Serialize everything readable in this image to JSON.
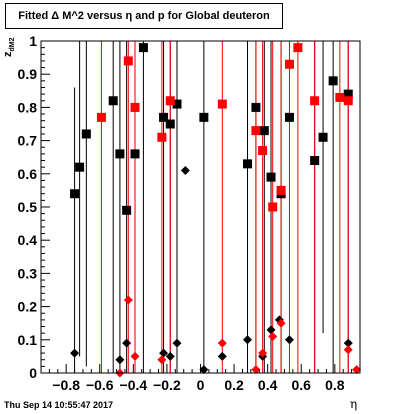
{
  "chart_data": {
    "type": "scatter",
    "title": "Fitted Δ M^2 versus η and p for Global deuteron",
    "xlabel": "η",
    "ylabel_main": "z",
    "ylabel_sub": "dM2",
    "timestamp": "Thu Sep 14 10:55:47 2017",
    "xlim": [
      -0.95,
      0.95
    ],
    "ylim": [
      0,
      1
    ],
    "x_ticks": [
      "−0.8",
      "−0.6",
      "−0.4",
      "−0.2",
      "0",
      "0.2",
      "0.4",
      "0.6",
      "0.8"
    ],
    "y_ticks": [
      "0",
      "0.1",
      "0.2",
      "0.3",
      "0.4",
      "0.5",
      "0.6",
      "0.7",
      "0.8",
      "0.9",
      "1"
    ],
    "colors": {
      "black_series": "#000000",
      "red_series": "#ff0000",
      "frame": "#000000"
    },
    "series": [
      {
        "marker": "square",
        "color": "#000000",
        "points": [
          {
            "x": -0.75,
            "y": 0.54,
            "ylo": 0.0,
            "yhi": 0.86
          },
          {
            "x": -0.72,
            "y": 0.62,
            "ylo": 0.05,
            "yhi": 1.0
          },
          {
            "x": -0.68,
            "y": 0.72,
            "ylo": 0.02,
            "yhi": 1.0
          },
          {
            "x": -0.52,
            "y": 0.82,
            "ylo": 0.0,
            "yhi": 1.0
          },
          {
            "x": -0.48,
            "y": 0.66,
            "ylo": 0.0,
            "yhi": 1.0
          },
          {
            "x": -0.44,
            "y": 0.49,
            "ylo": 0.0,
            "yhi": 1.0
          },
          {
            "x": -0.39,
            "y": 0.66,
            "ylo": 0.0,
            "yhi": 1.0
          },
          {
            "x": -0.34,
            "y": 0.98,
            "ylo": 0.0,
            "yhi": 1.0
          },
          {
            "x": -0.22,
            "y": 0.77,
            "ylo": 0.0,
            "yhi": 1.0
          },
          {
            "x": -0.18,
            "y": 0.75,
            "ylo": 0.0,
            "yhi": 1.0
          },
          {
            "x": -0.14,
            "y": 0.81,
            "ylo": 0.0,
            "yhi": 1.0
          },
          {
            "x": 0.02,
            "y": 0.77,
            "ylo": 0.0,
            "yhi": 1.0
          },
          {
            "x": 0.28,
            "y": 0.63,
            "ylo": 0.0,
            "yhi": 1.0
          },
          {
            "x": 0.33,
            "y": 0.8,
            "ylo": 0.0,
            "yhi": 1.0
          },
          {
            "x": 0.38,
            "y": 0.73,
            "ylo": 0.0,
            "yhi": 1.0
          },
          {
            "x": 0.42,
            "y": 0.59,
            "ylo": 0.0,
            "yhi": 1.0
          },
          {
            "x": 0.48,
            "y": 0.54,
            "ylo": 0.0,
            "yhi": 1.0
          },
          {
            "x": 0.53,
            "y": 0.77,
            "ylo": 0.0,
            "yhi": 1.0
          },
          {
            "x": 0.68,
            "y": 0.64,
            "ylo": 0.0,
            "yhi": 1.0
          },
          {
            "x": 0.73,
            "y": 0.71,
            "ylo": 0.12,
            "yhi": 1.0
          },
          {
            "x": 0.79,
            "y": 0.88,
            "ylo": 0.0,
            "yhi": 1.0
          },
          {
            "x": 0.88,
            "y": 0.84,
            "ylo": 0.0,
            "yhi": 1.0
          }
        ]
      },
      {
        "marker": "square",
        "color": "#ff0000",
        "points": [
          {
            "x": -0.59,
            "y": 0.77,
            "ylo": 0.0,
            "yhi": 1.0
          },
          {
            "x": -0.43,
            "y": 0.94,
            "ylo": 0.0,
            "yhi": 1.0
          },
          {
            "x": -0.39,
            "y": 0.8,
            "ylo": 0.0,
            "yhi": 1.0
          },
          {
            "x": -0.23,
            "y": 0.71,
            "ylo": 0.0,
            "yhi": 1.0
          },
          {
            "x": -0.18,
            "y": 0.82,
            "ylo": 0.0,
            "yhi": 1.0
          },
          {
            "x": 0.13,
            "y": 0.81,
            "ylo": 0.0,
            "yhi": 1.0
          },
          {
            "x": 0.33,
            "y": 0.73,
            "ylo": 0.0,
            "yhi": 1.0
          },
          {
            "x": 0.37,
            "y": 0.67,
            "ylo": 0.0,
            "yhi": 1.0
          },
          {
            "x": 0.43,
            "y": 0.5,
            "ylo": 0.0,
            "yhi": 1.0
          },
          {
            "x": 0.48,
            "y": 0.55,
            "ylo": 0.0,
            "yhi": 1.0
          },
          {
            "x": 0.53,
            "y": 0.93,
            "ylo": 0.0,
            "yhi": 1.0
          },
          {
            "x": 0.58,
            "y": 0.98,
            "ylo": 0.0,
            "yhi": 1.0
          },
          {
            "x": 0.68,
            "y": 0.82,
            "ylo": 0.0,
            "yhi": 1.0
          },
          {
            "x": 0.83,
            "y": 0.83,
            "ylo": 0.0,
            "yhi": 1.0
          },
          {
            "x": 0.88,
            "y": 0.82,
            "ylo": 0.0,
            "yhi": 1.0
          }
        ]
      },
      {
        "marker": "diamond",
        "color": "#000000",
        "points": [
          {
            "x": -0.75,
            "y": 0.06
          },
          {
            "x": -0.48,
            "y": 0.04
          },
          {
            "x": -0.44,
            "y": 0.09
          },
          {
            "x": -0.22,
            "y": 0.06
          },
          {
            "x": -0.18,
            "y": 0.05
          },
          {
            "x": -0.14,
            "y": 0.09
          },
          {
            "x": -0.09,
            "y": 0.61
          },
          {
            "x": 0.02,
            "y": 0.01
          },
          {
            "x": 0.13,
            "y": 0.05
          },
          {
            "x": 0.28,
            "y": 0.1
          },
          {
            "x": 0.37,
            "y": 0.05
          },
          {
            "x": 0.42,
            "y": 0.13
          },
          {
            "x": 0.47,
            "y": 0.16
          },
          {
            "x": 0.53,
            "y": 0.1
          },
          {
            "x": 0.88,
            "y": 0.09
          }
        ]
      },
      {
        "marker": "diamond",
        "color": "#ff0000",
        "points": [
          {
            "x": -0.48,
            "y": 0.0
          },
          {
            "x": -0.43,
            "y": 0.22
          },
          {
            "x": -0.39,
            "y": 0.05
          },
          {
            "x": -0.23,
            "y": 0.04
          },
          {
            "x": 0.13,
            "y": 0.09
          },
          {
            "x": 0.33,
            "y": 0.01
          },
          {
            "x": 0.37,
            "y": 0.06
          },
          {
            "x": 0.43,
            "y": 0.11
          },
          {
            "x": 0.48,
            "y": 0.15
          },
          {
            "x": 0.88,
            "y": 0.07
          },
          {
            "x": 0.93,
            "y": 0.01
          }
        ]
      }
    ]
  }
}
